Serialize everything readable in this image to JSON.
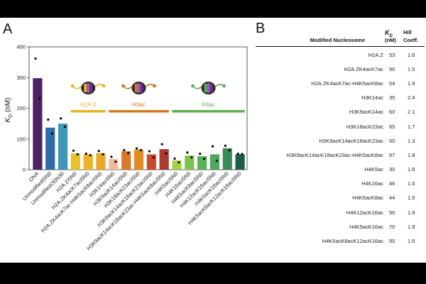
{
  "panels": {
    "left": "A",
    "right": "B"
  },
  "chart_data": {
    "type": "bar",
    "ylabel_main": "K",
    "ylabel_sub": "D",
    "ylabel_unit": " (nM)",
    "yticks": [
      0,
      100,
      200,
      300,
      400
    ],
    "ylim": [
      0,
      400
    ],
    "categories": [
      "DNA",
      "Unmodified/0N0",
      "Unmodified/30N30",
      "H2A.Z/0N0",
      "H2A.ZK4acK7ac/0N0",
      "H2A.ZK4acK7ac-H4K5acK8ac/0N0",
      "H3K14ac/0N0",
      "H3K9acK14ac/0N0",
      "H3K18acK23ac/0N0",
      "H3K9acK14acK18acK23ac/0N0",
      "H3K9acK14acK18acK23ac-H4K5acK8ac/0N0",
      "H4K5ac/0N0",
      "H4K16ac/0N0",
      "H4K5acK8ac/0N0",
      "H4K12acK16ac/0N0",
      "H4K5acK16ac/0N0",
      "H4K5acK8acK12acK16ac/0N0"
    ],
    "values": [
      298,
      137,
      150,
      53,
      50,
      54,
      35,
      60,
      65,
      50,
      67,
      30,
      46,
      44,
      50,
      70,
      50
    ],
    "points": [
      [
        362,
        232
      ],
      [
        163,
        118
      ],
      [
        167,
        140
      ],
      [
        62,
        50
      ],
      [
        52,
        47
      ],
      [
        61,
        50
      ],
      [
        42,
        26
      ],
      [
        64,
        54
      ],
      [
        69,
        64
      ],
      [
        60,
        40
      ],
      [
        83,
        53
      ],
      [
        36,
        24
      ],
      [
        56,
        40
      ],
      [
        52,
        35
      ],
      [
        76,
        29
      ],
      [
        78,
        63
      ],
      [
        52,
        51
      ]
    ],
    "bar_colors": [
      "#4b2366",
      "#2e6ba8",
      "#3d97b8",
      "#e8c12a",
      "#efb22a",
      "#e9a82c",
      "#f2b99a",
      "#d8782c",
      "#e28c26",
      "#c94a2a",
      "#a83c32",
      "#a6d045",
      "#7cc24e",
      "#5ab258",
      "#4ea55c",
      "#3a8c56",
      "#1d5d4a"
    ],
    "groups": [
      {
        "label": "H2A.Z",
        "color": "#e8b422",
        "mol_colors": [
          "#e8b422",
          "#6d2f8a"
        ],
        "start": 3,
        "end": 5
      },
      {
        "label": "H3ac",
        "color": "#d4781e",
        "mol_colors": [
          "#d4781e",
          "#6d2f8a"
        ],
        "start": 6,
        "end": 10
      },
      {
        "label": "H4ac",
        "color": "#5fb04f",
        "mol_colors": [
          "#5fb04f",
          "#6d2f8a"
        ],
        "start": 11,
        "end": 16
      }
    ]
  },
  "table": {
    "headers": {
      "nucleosome": "Modified Nucleosome",
      "kd_main": "K",
      "kd_sub": "D",
      "kd_unit": "(nM)",
      "hill_line1": "Hill",
      "hill_line2": "Coeff."
    },
    "rows": [
      {
        "name": "H2A.Z",
        "kd": "53",
        "hill": "1.6"
      },
      {
        "name": "H2A.ZK4acK7ac",
        "kd": "50",
        "hill": "1.5"
      },
      {
        "name": "H2A.ZK4acK7ac-H4K5acK8ac",
        "kd": "54",
        "hill": "1.9"
      },
      {
        "name": "H3K14ac",
        "kd": "35",
        "hill": "2.4"
      },
      {
        "name": "H3K9acK14ac",
        "kd": "60",
        "hill": "2.1"
      },
      {
        "name": "H3K18acK23ac",
        "kd": "65",
        "hill": "1.7"
      },
      {
        "name": "H3K9acK14acK18acK23ac",
        "kd": "50",
        "hill": "1.3"
      },
      {
        "name": "H3K9acK14acK18acK23ac-H4K5acK8ac",
        "kd": "67",
        "hill": "1.8"
      },
      {
        "name": "H4K5ac",
        "kd": "30",
        "hill": "1.6"
      },
      {
        "name": "H4K16ac",
        "kd": "46",
        "hill": "1.6"
      },
      {
        "name": "H4K5acK8ac",
        "kd": "44",
        "hill": "1.5"
      },
      {
        "name": "H4K12acK16ac",
        "kd": "50",
        "hill": "1.9"
      },
      {
        "name": "H4K5acK16ac",
        "kd": "70",
        "hill": "1.9"
      },
      {
        "name": "H4K5acK8acK12acK16ac",
        "kd": "50",
        "hill": "1.6"
      }
    ]
  }
}
